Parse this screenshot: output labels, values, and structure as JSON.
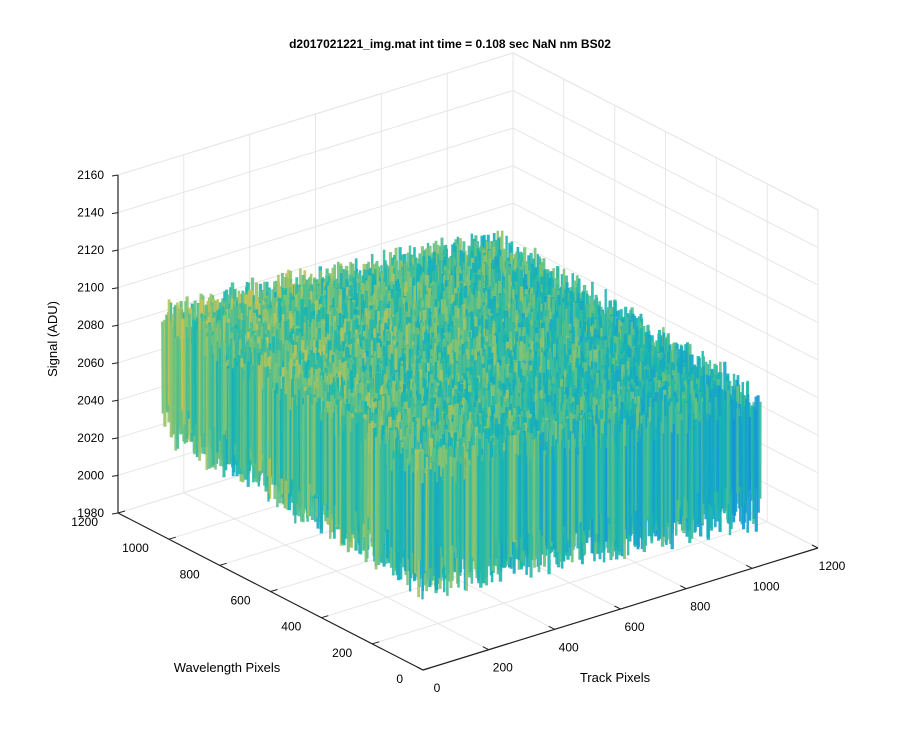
{
  "chart_data": {
    "type": "surface",
    "title": "d2017021221_img.mat int time = 0.108 sec  NaN nm BS02",
    "xlabel": "Track Pixels",
    "ylabel": "Wavelength Pixels",
    "zlabel": "Signal (ADU)",
    "xlim": [
      0,
      1200
    ],
    "ylim": [
      0,
      1200
    ],
    "zlim": [
      1980,
      2160
    ],
    "xticks": [
      0,
      200,
      400,
      600,
      800,
      1000,
      1200
    ],
    "yticks": [
      0,
      200,
      400,
      600,
      800,
      1000,
      1200
    ],
    "zticks": [
      1980,
      2000,
      2020,
      2040,
      2060,
      2080,
      2100,
      2120,
      2140,
      2160
    ],
    "data_extent": {
      "x": [
        0,
        1024
      ],
      "y": [
        0,
        1024
      ]
    },
    "surface_mean_level": 2050,
    "surface_noise_range": [
      2000,
      2120
    ],
    "colormap": "parula",
    "colors": {
      "low": "#0b6fd6",
      "mid": "#18b7b0",
      "high": "#e9c84a"
    }
  }
}
